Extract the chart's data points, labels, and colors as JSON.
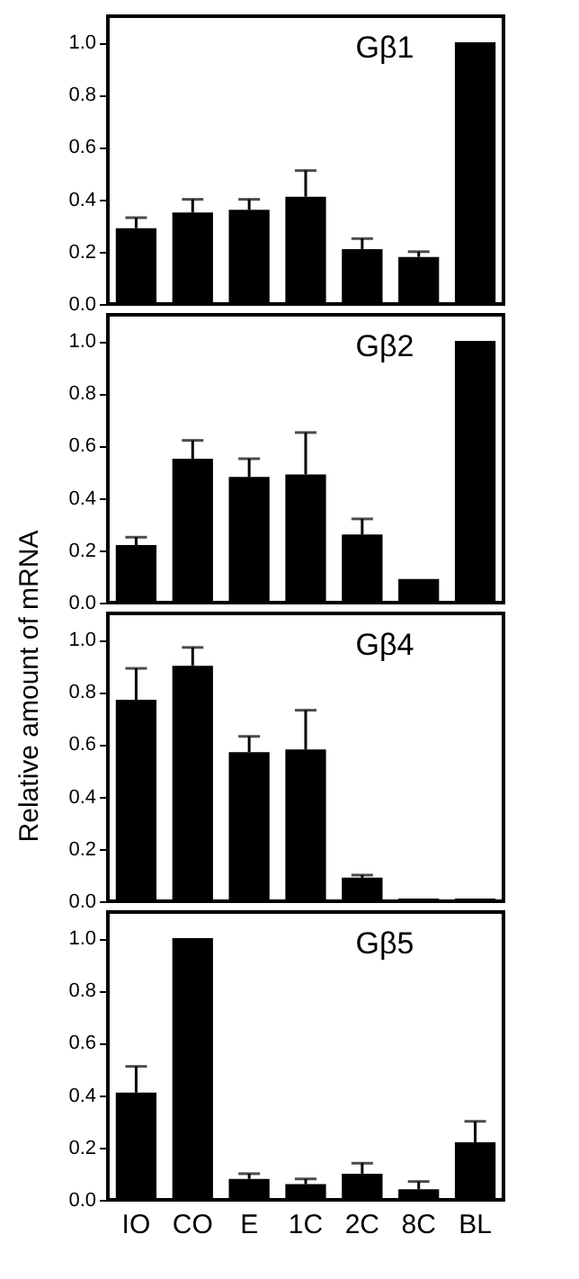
{
  "chart_data": [
    {
      "type": "bar",
      "title": "Gβ1",
      "categories": [
        null,
        null,
        null,
        null,
        null,
        null,
        null
      ],
      "values": [
        0.29,
        0.35,
        0.36,
        0.41,
        0.21,
        0.18,
        1.0
      ],
      "errors": [
        [
          0.29,
          0.33
        ],
        [
          0.35,
          0.4
        ],
        [
          0.36,
          0.4
        ],
        [
          0.41,
          0.51
        ],
        [
          0.21,
          0.25
        ],
        [
          0.18,
          0.2
        ],
        null
      ],
      "color": "#000000",
      "ylim": [
        0,
        1.1
      ],
      "yticks": [
        {
          "value": 0,
          "label": "0.0"
        },
        {
          "value": 0.2,
          "label": "0.2"
        },
        {
          "value": 0.4,
          "label": "0.4"
        },
        {
          "value": 0.6,
          "label": "0.6"
        },
        {
          "value": 0.8,
          "label": "0.8"
        },
        {
          "value": 1,
          "label": "1.0"
        }
      ],
      "tick_labels": "y"
    },
    {
      "type": "bar",
      "title": "Gβ2",
      "categories": [
        null,
        null,
        null,
        null,
        null,
        null,
        null
      ],
      "values": [
        0.22,
        0.55,
        0.48,
        0.49,
        0.26,
        0.09,
        1.0
      ],
      "errors": [
        [
          0.22,
          0.25
        ],
        [
          0.55,
          0.62
        ],
        [
          0.48,
          0.55
        ],
        [
          0.49,
          0.65
        ],
        [
          0.26,
          0.32
        ],
        null,
        null
      ],
      "color": "#000000",
      "ylim": [
        0,
        1.1
      ],
      "yticks": [
        {
          "value": 0,
          "label": "0.0"
        },
        {
          "value": 0.2,
          "label": "0.2"
        },
        {
          "value": 0.4,
          "label": "0.4"
        },
        {
          "value": 0.6,
          "label": "0.6"
        },
        {
          "value": 0.8,
          "label": "0.8"
        },
        {
          "value": 1,
          "label": "1.0"
        }
      ],
      "tick_labels": "y"
    },
    {
      "type": "bar",
      "title": "Gβ4",
      "ylabel": "Relative amount of mRNA",
      "categories": [
        null,
        null,
        null,
        null,
        null,
        null,
        null
      ],
      "values": [
        0.77,
        0.9,
        0.57,
        0.58,
        0.09,
        0.01,
        0.01
      ],
      "errors": [
        [
          0.77,
          0.89
        ],
        [
          0.9,
          0.97
        ],
        [
          0.57,
          0.63
        ],
        [
          0.58,
          0.73
        ],
        [
          0.09,
          0.1
        ],
        null,
        null
      ],
      "color": "#000000",
      "ylim": [
        0,
        1.1
      ],
      "yticks": [
        {
          "value": 0,
          "label": "0.0"
        },
        {
          "value": 0.2,
          "label": "0.2"
        },
        {
          "value": 0.4,
          "label": "0.4"
        },
        {
          "value": 0.6,
          "label": "0.6"
        },
        {
          "value": 0.8,
          "label": "0.8"
        },
        {
          "value": 1,
          "label": "1.0"
        }
      ],
      "tick_labels": "y"
    },
    {
      "type": "bar",
      "title": "Gβ5",
      "categories": [
        "IO",
        "CO",
        "E",
        "1C",
        "2C",
        "8C",
        "BL"
      ],
      "values": [
        0.41,
        1.0,
        0.08,
        0.06,
        0.1,
        0.04,
        0.22
      ],
      "errors": [
        [
          0.41,
          0.51
        ],
        null,
        [
          0.08,
          0.1
        ],
        [
          0.06,
          0.08
        ],
        [
          0.1,
          0.14
        ],
        [
          0.04,
          0.07
        ],
        [
          0.22,
          0.3
        ]
      ],
      "color": "#000000",
      "ylim": [
        0,
        1.1
      ],
      "yticks": [
        {
          "value": 0,
          "label": "0.0"
        },
        {
          "value": 0.2,
          "label": "0.2"
        },
        {
          "value": 0.4,
          "label": "0.4"
        },
        {
          "value": 0.6,
          "label": "0.6"
        },
        {
          "value": 0.8,
          "label": "0.8"
        },
        {
          "value": 1,
          "label": "1.0"
        }
      ]
    }
  ]
}
